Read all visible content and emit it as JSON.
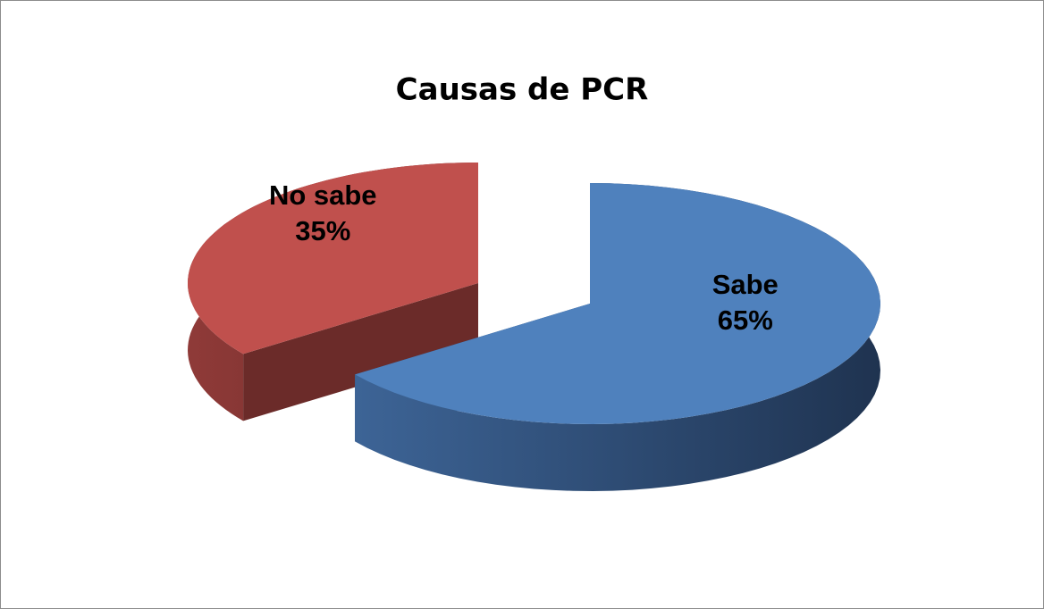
{
  "chart_data": {
    "type": "pie3d",
    "title": "Causas de PCR",
    "categories": [
      "Sabe",
      "No sabe"
    ],
    "values": [
      65,
      35
    ],
    "value_labels": [
      "65%",
      "35%"
    ],
    "colors": [
      "#4f81bd",
      "#c0504d"
    ],
    "explode": [
      false,
      true
    ]
  }
}
